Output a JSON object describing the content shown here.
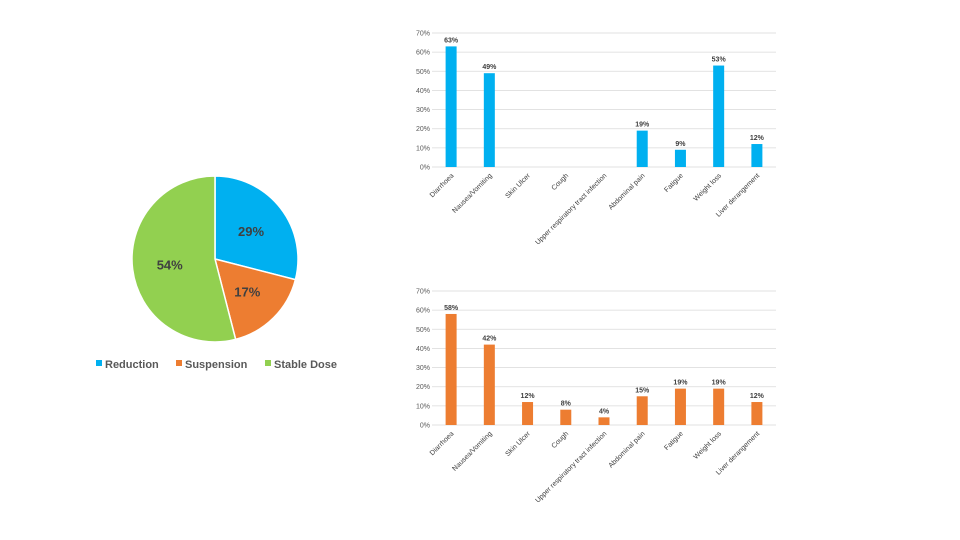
{
  "chart_data": [
    {
      "type": "pie",
      "title": "",
      "labels": [
        "Reduction",
        "Suspension",
        "Stable Dose"
      ],
      "values": [
        29,
        17,
        54
      ],
      "value_labels": [
        "29%",
        "17%",
        "54%"
      ],
      "colors": [
        "#00b0f0",
        "#ed7d31",
        "#92d050"
      ],
      "legend": "bottom"
    },
    {
      "type": "bar",
      "title": "",
      "categories": [
        "Diarrhoea",
        "Nausea/Vomiting",
        "Skin Ulcer",
        "Cough",
        "Upper respiratory tract infection",
        "Abdominal pain",
        "Fatigue",
        "Weight loss",
        "Liver derangement"
      ],
      "values": [
        63,
        49,
        0,
        0,
        0,
        19,
        9,
        53,
        12
      ],
      "data_labels": [
        "63%",
        "49%",
        "",
        "",
        "",
        "19%",
        "9%",
        "53%",
        "12%"
      ],
      "yticks": [
        "0%",
        "10%",
        "20%",
        "30%",
        "40%",
        "50%",
        "60%",
        "70%"
      ],
      "ylim": [
        0,
        70
      ],
      "color": "#00b0f0",
      "grid": true
    },
    {
      "type": "bar",
      "title": "",
      "categories": [
        "Diarrhoea",
        "Nausea/Vomiting",
        "Skin Ulcer",
        "Cough",
        "Upper respiratory tract infection",
        "Abdominal pain",
        "Fatigue",
        "Weight loss",
        "Liver derangement"
      ],
      "values": [
        58,
        42,
        12,
        8,
        4,
        15,
        19,
        19,
        12
      ],
      "data_labels": [
        "58%",
        "42%",
        "12%",
        "8%",
        "4%",
        "15%",
        "19%",
        "19%",
        "12%"
      ],
      "yticks": [
        "0%",
        "10%",
        "20%",
        "30%",
        "40%",
        "50%",
        "60%",
        "70%"
      ],
      "ylim": [
        0,
        70
      ],
      "color": "#ed7d31",
      "grid": true
    }
  ]
}
